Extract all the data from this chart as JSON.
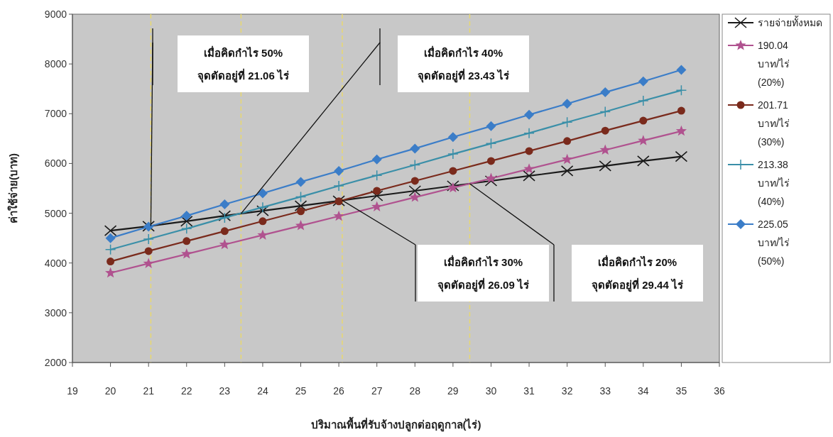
{
  "chart_data": {
    "type": "line",
    "xlabel": "ปริมาณพื้นที่รับจ้างปลูกต่อฤดูกาล(ไร่)",
    "ylabel": "ค่าใช้จ่าย(บาท)",
    "x": [
      20,
      21,
      22,
      23,
      24,
      25,
      26,
      27,
      28,
      29,
      30,
      31,
      32,
      33,
      34,
      35
    ],
    "xlim": [
      19,
      36
    ],
    "xticks": [
      19,
      20,
      21,
      22,
      23,
      24,
      25,
      26,
      27,
      28,
      29,
      30,
      31,
      32,
      33,
      34,
      35,
      36
    ],
    "ylim": [
      2000,
      9000
    ],
    "yticks": [
      2000,
      3000,
      4000,
      5000,
      6000,
      7000,
      8000,
      9000
    ],
    "grid": false,
    "legend": "right",
    "line_style": "solid",
    "series": [
      {
        "name": "รายจ่ายทั้งหมด",
        "color": "#1a1a1a",
        "marker": "cross",
        "values": [
          4650,
          4740,
          4840,
          4950,
          5050,
          5150,
          5250,
          5350,
          5450,
          5550,
          5650,
          5750,
          5850,
          5950,
          6050,
          6140
        ]
      },
      {
        "name": "190.04 บาท/ไร่ (20%)",
        "color": "#b0528f",
        "marker": "star",
        "values": [
          3800,
          3990,
          4180,
          4370,
          4560,
          4750,
          4940,
          5130,
          5320,
          5510,
          5700,
          5890,
          6080,
          6270,
          6460,
          6650
        ]
      },
      {
        "name": "201.71 บาท/ไร่ (30%)",
        "color": "#7a2a1c",
        "marker": "circle",
        "values": [
          4030,
          4240,
          4440,
          4640,
          4840,
          5040,
          5240,
          5450,
          5650,
          5850,
          6050,
          6250,
          6450,
          6660,
          6860,
          7060
        ]
      },
      {
        "name": "213.38 บาท/ไร่ (40%)",
        "color": "#3a8fa8",
        "marker": "plus",
        "values": [
          4270,
          4480,
          4690,
          4910,
          5120,
          5330,
          5550,
          5760,
          5970,
          6190,
          6400,
          6610,
          6830,
          7040,
          7260,
          7470
        ]
      },
      {
        "name": "225.05 บาท/ไร่ (50%)",
        "color": "#3b7dc8",
        "marker": "diamond",
        "values": [
          4500,
          4730,
          4950,
          5180,
          5400,
          5630,
          5850,
          6080,
          6300,
          6530,
          6750,
          6980,
          7200,
          7430,
          7650,
          7880
        ]
      }
    ],
    "ref_lines": [
      {
        "axis": "x",
        "value": 21.06,
        "color": "#e8d870",
        "line_style": "dashed"
      },
      {
        "axis": "x",
        "value": 23.43,
        "color": "#e8d870",
        "line_style": "dashed"
      },
      {
        "axis": "x",
        "value": 26.09,
        "color": "#e8d870",
        "line_style": "dashed"
      },
      {
        "axis": "x",
        "value": 29.44,
        "color": "#e8d870",
        "line_style": "dashed"
      }
    ],
    "annotations": [
      "เมื่อคิดกำไร 50%\nจุดตัดอยู่ที่ 21.06 ไร่",
      "เมื่อคิดกำไร 40%\nจุดตัดอยู่ที่ 23.43 ไร่",
      "เมื่อคิดกำไร 30%\nจุดตัดอยู่ที่ 26.09 ไร่",
      "เมื่อคิดกำไร 20%\nจุดตัดอยู่ที่ 29.44 ไร่"
    ]
  }
}
